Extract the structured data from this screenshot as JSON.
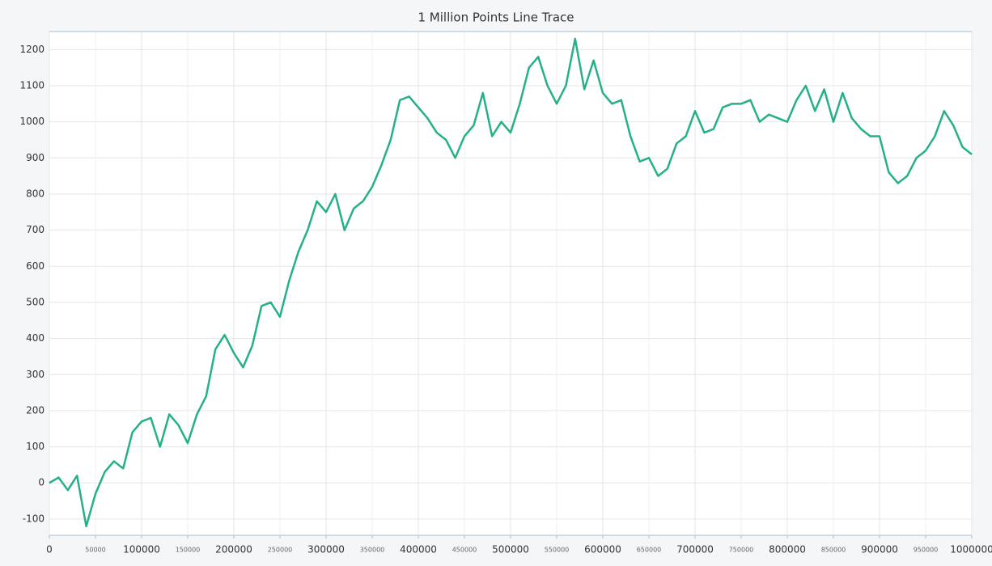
{
  "chart_data": {
    "type": "line",
    "title": "1 Million Points Line Trace",
    "x": [
      0,
      10000,
      20000,
      30000,
      40000,
      50000,
      60000,
      70000,
      80000,
      90000,
      100000,
      110000,
      120000,
      130000,
      140000,
      150000,
      160000,
      170000,
      180000,
      190000,
      200000,
      210000,
      220000,
      230000,
      240000,
      250000,
      260000,
      270000,
      280000,
      290000,
      300000,
      310000,
      320000,
      330000,
      340000,
      350000,
      360000,
      370000,
      380000,
      390000,
      400000,
      410000,
      420000,
      430000,
      440000,
      450000,
      460000,
      470000,
      480000,
      490000,
      500000,
      510000,
      520000,
      530000,
      540000,
      550000,
      560000,
      570000,
      580000,
      590000,
      600000,
      610000,
      620000,
      630000,
      640000,
      650000,
      660000,
      670000,
      680000,
      690000,
      700000,
      710000,
      720000,
      730000,
      740000,
      750000,
      760000,
      770000,
      780000,
      790000,
      800000,
      810000,
      820000,
      830000,
      840000,
      850000,
      860000,
      870000,
      880000,
      890000,
      900000,
      910000,
      920000,
      930000,
      940000,
      950000,
      960000,
      970000,
      980000,
      990000,
      1000000
    ],
    "values": [
      0,
      15,
      -20,
      20,
      -120,
      -30,
      30,
      60,
      40,
      140,
      170,
      180,
      100,
      190,
      160,
      110,
      190,
      240,
      370,
      410,
      360,
      320,
      380,
      490,
      500,
      460,
      560,
      640,
      700,
      780,
      750,
      800,
      700,
      760,
      780,
      820,
      880,
      950,
      1060,
      1070,
      1040,
      1010,
      970,
      950,
      900,
      960,
      990,
      1080,
      960,
      1000,
      970,
      1050,
      1150,
      1180,
      1100,
      1050,
      1100,
      1230,
      1090,
      1170,
      1080,
      1050,
      1060,
      960,
      890,
      900,
      850,
      870,
      940,
      960,
      1030,
      970,
      980,
      1040,
      1050,
      1050,
      1060,
      1000,
      1020,
      1010,
      1000,
      1060,
      1100,
      1030,
      1090,
      1000,
      1080,
      1010,
      980,
      960,
      960,
      860,
      830,
      850,
      900,
      920,
      960,
      1030,
      990,
      930,
      910
    ],
    "color": "#26b08a",
    "xlim": [
      0,
      1000000
    ],
    "xticks": [
      0,
      50000,
      100000,
      150000,
      200000,
      250000,
      300000,
      350000,
      400000,
      450000,
      500000,
      550000,
      600000,
      650000,
      700000,
      750000,
      800000,
      850000,
      900000,
      950000,
      1000000
    ],
    "ylim": [
      -145,
      1250
    ],
    "yticks": [
      -100,
      0,
      100,
      200,
      300,
      400,
      500,
      600,
      700,
      800,
      900,
      1000,
      1100,
      1200
    ],
    "grid": true
  }
}
